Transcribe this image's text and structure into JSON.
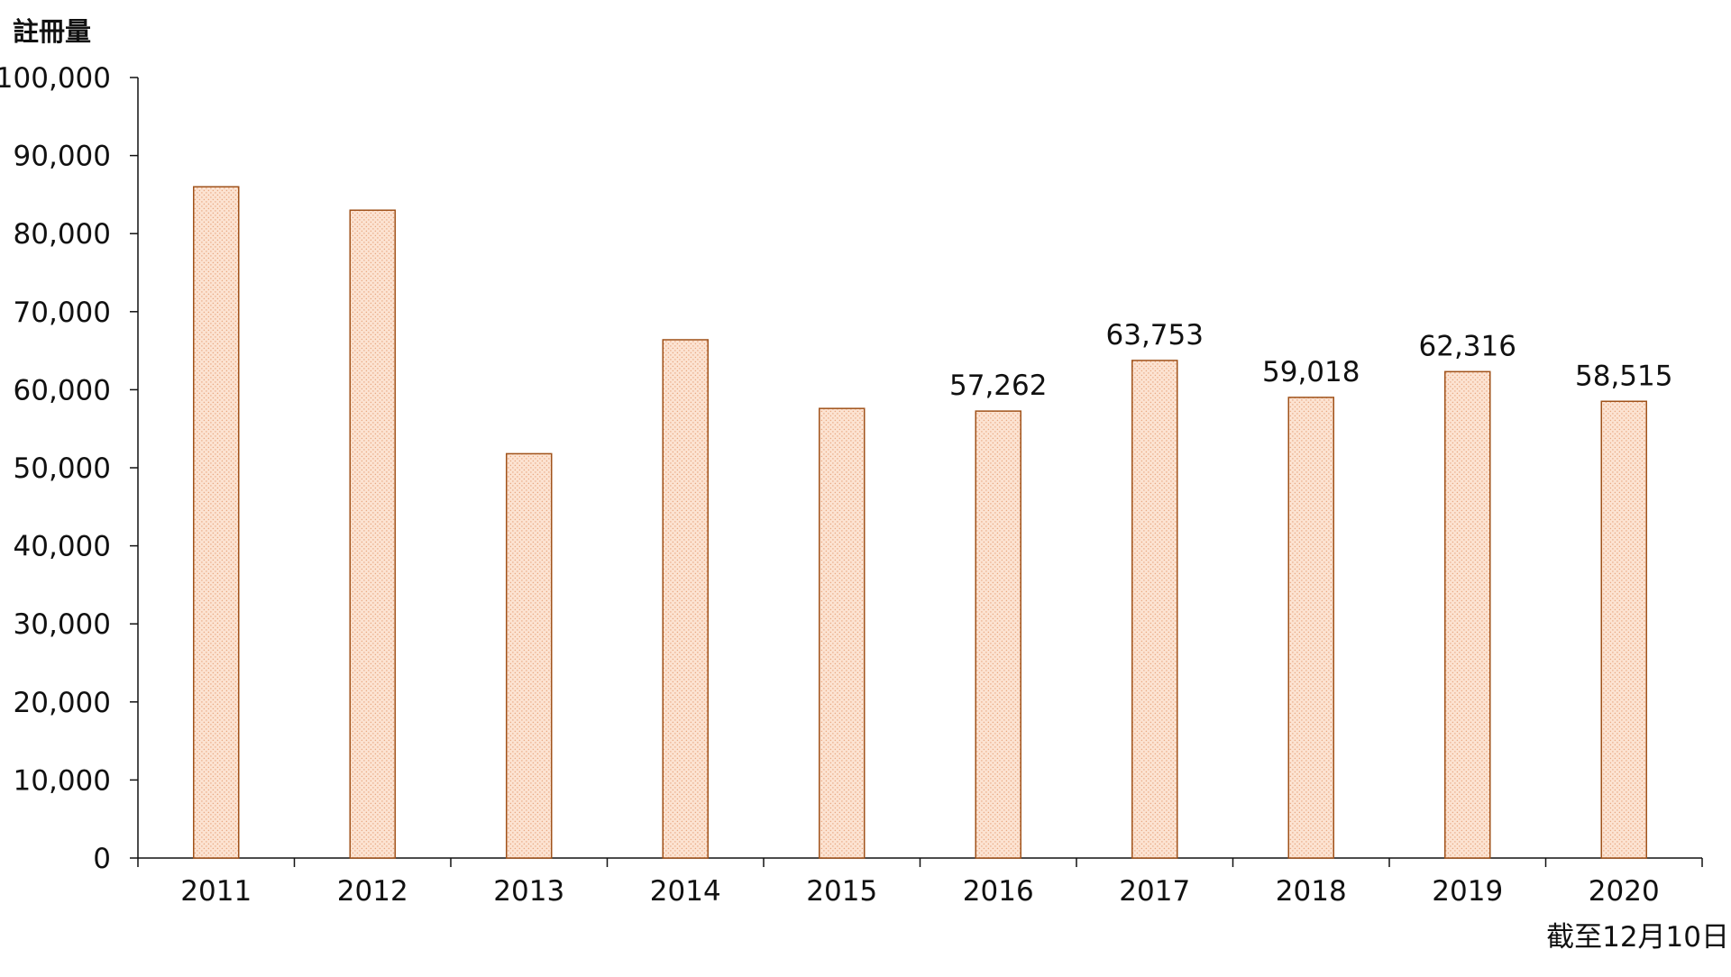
{
  "chart_data": {
    "type": "bar",
    "title": "",
    "ylabel": "註冊量",
    "xlabel": "",
    "categories": [
      "2011",
      "2012",
      "2013",
      "2014",
      "2015",
      "2016",
      "2017",
      "2018",
      "2019",
      "2020"
    ],
    "category_note": "截至12月10日",
    "values": [
      86000,
      83000,
      51800,
      66400,
      57600,
      57262,
      63753,
      59018,
      62316,
      58515
    ],
    "data_labels": [
      null,
      null,
      null,
      null,
      null,
      "57,262",
      "63,753",
      "59,018",
      "62,316",
      "58,515"
    ],
    "ylim": [
      0,
      100000
    ],
    "yticks": [
      0,
      10000,
      20000,
      30000,
      40000,
      50000,
      60000,
      70000,
      80000,
      90000,
      100000
    ],
    "ytick_labels": [
      "0",
      "10,000",
      "20,000",
      "30,000",
      "40,000",
      "50,000",
      "60,000",
      "70,000",
      "80,000",
      "90,000",
      "100,000"
    ],
    "grid": false,
    "legend": "none",
    "colors": {
      "bar_fill": "#fce3d2",
      "bar_dots": "#e9a882",
      "bar_stroke": "#a0521a",
      "axis": "#111111",
      "text": "#111111"
    }
  }
}
